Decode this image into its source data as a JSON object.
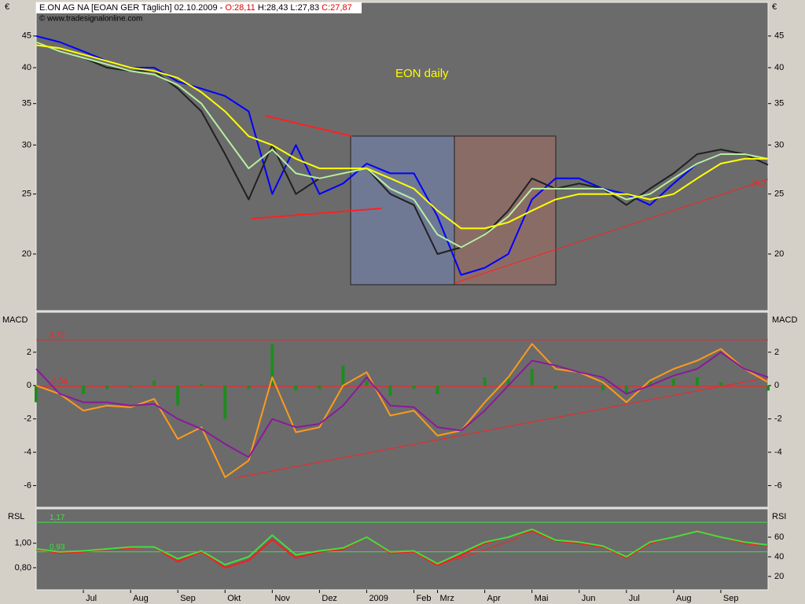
{
  "chart_data": [
    {
      "type": "line",
      "title": "E.ON AG NA [EOAN GER  Täglich] 02.10.2009 -",
      "quote": [
        "O:28,11",
        "H:28,43",
        "L:27,83",
        "C:27,87"
      ],
      "source": "© www.tradesignalonline.com",
      "annotation": "EON daily",
      "end_label": "26,2",
      "axis_unit": "€",
      "log_scale": true,
      "ylim": [
        16.2,
        51
      ],
      "yticks": [
        20,
        25,
        30,
        35,
        40,
        45
      ],
      "series": [
        {
          "color": "#0000ff",
          "values": [
            45,
            44,
            42.5,
            41,
            40,
            40,
            38,
            37,
            36,
            34,
            25,
            30,
            25,
            26,
            28,
            27,
            27,
            23,
            18.5,
            19,
            20,
            24.5,
            26.5,
            26.5,
            25.5,
            25,
            24,
            26,
            28,
            29,
            29,
            28.5
          ]
        },
        {
          "color": "#202020",
          "values": [
            44,
            42.5,
            41.5,
            40,
            39.5,
            39.5,
            37,
            34,
            29,
            24.5,
            30,
            25,
            26.5,
            27,
            27.5,
            25,
            24,
            20,
            20.5,
            21.5,
            23.5,
            26.5,
            25.5,
            26,
            25.5,
            24,
            25.5,
            27,
            29,
            29.5,
            29,
            27.87
          ]
        },
        {
          "color": "#b8f0a0",
          "values": [
            44,
            42.5,
            41.5,
            40.5,
            39.5,
            39,
            37.5,
            35,
            31,
            27.5,
            29.5,
            27,
            26.5,
            27,
            27.5,
            25.5,
            24.5,
            21.5,
            20.5,
            21.5,
            23,
            25.5,
            25.5,
            25.5,
            25.5,
            24.5,
            25,
            26.5,
            28,
            29,
            29,
            28.5
          ]
        },
        {
          "color": "#ffff00",
          "values": [
            43.5,
            43,
            42,
            41,
            40,
            39.5,
            38.5,
            36.5,
            34,
            31,
            30,
            28.5,
            27.5,
            27.5,
            27.5,
            26.5,
            25.5,
            23.5,
            22,
            22,
            22.5,
            23.5,
            24.5,
            25,
            25,
            25,
            24.5,
            25,
            26.5,
            28,
            28.5,
            28.5
          ]
        }
      ]
    },
    {
      "type": "line",
      "axis_label": "MACD",
      "ylim": [
        -7.3,
        4.4
      ],
      "yticks": [
        -6,
        -4,
        -2,
        0,
        2
      ],
      "reference_lines": [
        {
          "value": 2.75,
          "label": "2,75"
        },
        {
          "value": -0.04,
          "label": "-0,04"
        }
      ],
      "reference_color": "#ff2020",
      "series": [
        {
          "color": "#1e8c1e",
          "style": "histogram",
          "values": [
            -1,
            0,
            -0.5,
            -0.2,
            -0.1,
            0.3,
            -1.2,
            0.1,
            -2,
            -0.2,
            2.5,
            -0.3,
            -0.2,
            1.2,
            0.3,
            -0.6,
            -0.2,
            -0.5,
            0,
            0.5,
            0.5,
            1,
            -0.2,
            0,
            -0.3,
            -0.5,
            0.3,
            0.4,
            0.5,
            0.2,
            0,
            -0.3
          ]
        },
        {
          "color": "#ff9a1a",
          "values": [
            0,
            -0.5,
            -1.5,
            -1.2,
            -1.3,
            -0.8,
            -3.2,
            -2.5,
            -5.5,
            -4.5,
            0.5,
            -2.8,
            -2.5,
            0,
            0.8,
            -1.8,
            -1.5,
            -3,
            -2.7,
            -1,
            0.5,
            2.5,
            1,
            0.8,
            0.2,
            -1,
            0.3,
            1,
            1.5,
            2.2,
            1,
            0.2
          ]
        },
        {
          "color": "#8a1a9a",
          "values": [
            1,
            -0.5,
            -1,
            -1,
            -1.2,
            -1.1,
            -2,
            -2.6,
            -3.5,
            -4.3,
            -2,
            -2.5,
            -2.3,
            -1.2,
            0.5,
            -1.2,
            -1.3,
            -2.5,
            -2.7,
            -1.5,
            0,
            1.5,
            1.2,
            0.8,
            0.5,
            -0.5,
            0,
            0.6,
            1,
            2,
            1,
            0.5
          ]
        }
      ]
    },
    {
      "type": "line",
      "axis_label": "RSL",
      "axis_label_right": "RSI",
      "ylim": [
        0.62,
        1.28
      ],
      "yticks": [
        {
          "value": 1,
          "label": "1,00"
        },
        {
          "value": 0.8,
          "label": "0,80"
        }
      ],
      "y2lim": [
        6.4,
        88.8
      ],
      "y2ticks": [
        20,
        40,
        60
      ],
      "reference_lines": [
        {
          "value": 1.17,
          "label": "1,17"
        },
        {
          "value": 0.93,
          "label": "0,93"
        }
      ],
      "reference_color": "#40e040",
      "categories": [
        null,
        null,
        "Jul",
        null,
        "Aug",
        null,
        "Sep",
        null,
        "Okt",
        null,
        "Nov",
        null,
        "Dez",
        null,
        "2009",
        null,
        "Feb",
        "Mrz",
        null,
        "Apr",
        null,
        "Mai",
        null,
        "Jun",
        null,
        "Jul",
        null,
        "Aug",
        null,
        "Sep",
        null,
        null
      ],
      "series": [
        {
          "color": "#ff1a1a",
          "values": [
            0.95,
            0.92,
            0.93,
            0.95,
            0.96,
            0.97,
            0.85,
            0.93,
            0.8,
            0.86,
            1.03,
            0.88,
            0.93,
            0.95,
            1.05,
            0.92,
            0.93,
            0.82,
            0.9,
            1,
            1.05,
            1.1,
            1.02,
            1,
            0.97,
            0.88,
            1,
            1.05,
            1.1,
            1.05,
            1,
            0.98
          ]
        },
        {
          "color": "#40e040",
          "axis": "y2",
          "values": [
            48,
            45,
            46,
            48,
            50,
            50,
            38,
            46,
            32,
            40,
            62,
            42,
            46,
            49,
            60,
            45,
            46,
            33,
            44,
            55,
            60,
            68,
            57,
            55,
            51,
            40,
            55,
            60,
            66,
            60,
            55,
            52
          ]
        }
      ]
    }
  ]
}
